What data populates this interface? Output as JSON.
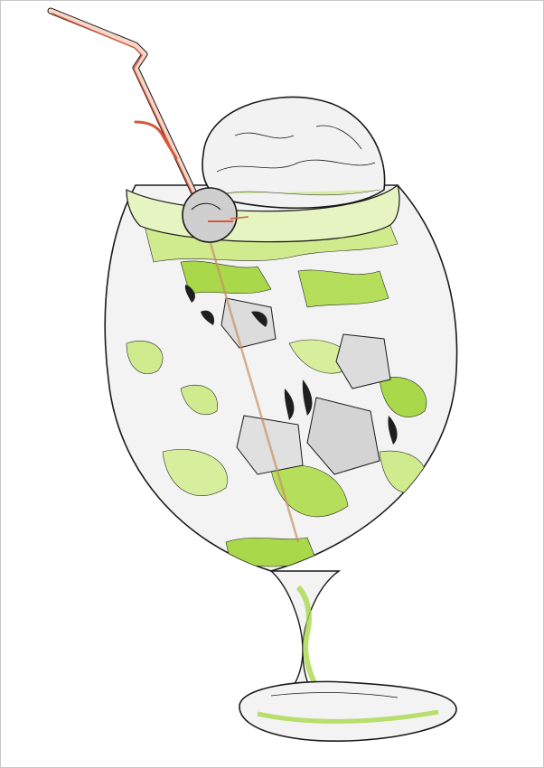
{
  "artwork": {
    "subject": "cocktail-glass-illustration",
    "palette": {
      "background": "#ffffff",
      "outline": "#1a1a1a",
      "glass": "#efefef",
      "glass_shadow": "#d6d6d6",
      "lime": "#a9d84a",
      "lime_light": "#d7ef9c",
      "lime_dark": "#7fb52a",
      "straw_red": "#d4583a",
      "straw_light": "#f0b39f",
      "cherry": "#cfcfcf",
      "fish": "#1f1f1f"
    },
    "icons": [
      "straw-icon",
      "cherry-icon",
      "ice-cream-scoop-icon",
      "fish-icon"
    ]
  }
}
